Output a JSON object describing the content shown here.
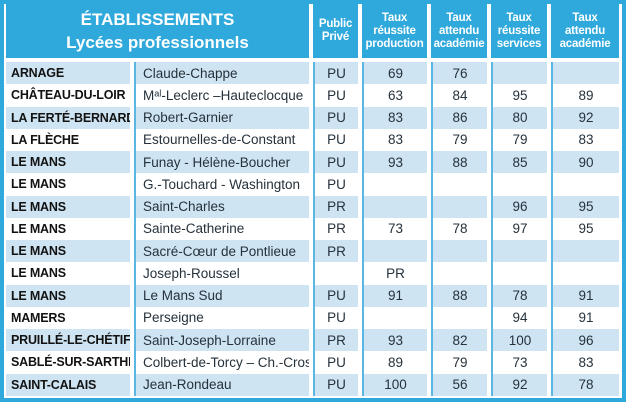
{
  "title": {
    "line1": "ÉTABLISSEMENTS",
    "line2": "Lycées professionnels"
  },
  "columns": [
    {
      "id": "public_prive",
      "lines": [
        "Public",
        "Privé"
      ]
    },
    {
      "id": "taux_reussite_production",
      "lines": [
        "Taux",
        "réussite",
        "production"
      ]
    },
    {
      "id": "taux_attendu_academie_1",
      "lines": [
        "Taux",
        "attendu",
        "académie"
      ]
    },
    {
      "id": "taux_reussite_services",
      "lines": [
        "Taux",
        "réussite",
        "services"
      ]
    },
    {
      "id": "taux_attendu_academie_2",
      "lines": [
        "Taux",
        "attendu",
        "académie"
      ]
    }
  ],
  "rows": [
    {
      "town": "ARNAGE",
      "school": "Claude-Chappe",
      "public_prive": "PU",
      "taux_reussite_production": "69",
      "taux_attendu_academie_1": "76",
      "taux_reussite_services": "",
      "taux_attendu_academie_2": ""
    },
    {
      "town": "CHÂTEAU-DU-LOIR",
      "school": "Mᵃˡ-Leclerc –Hauteclocque",
      "public_prive": "PU",
      "taux_reussite_production": "63",
      "taux_attendu_academie_1": "84",
      "taux_reussite_services": "95",
      "taux_attendu_academie_2": "89"
    },
    {
      "town": "LA FERTÉ-BERNARD",
      "school": "Robert-Garnier",
      "public_prive": "PU",
      "taux_reussite_production": "83",
      "taux_attendu_academie_1": "86",
      "taux_reussite_services": "80",
      "taux_attendu_academie_2": "92"
    },
    {
      "town": "LA FLÈCHE",
      "school": "Estournelles-de-Constant",
      "public_prive": "PU",
      "taux_reussite_production": "83",
      "taux_attendu_academie_1": "79",
      "taux_reussite_services": "79",
      "taux_attendu_academie_2": "83"
    },
    {
      "town": "LE MANS",
      "school": "Funay - Hélène-Boucher",
      "public_prive": "PU",
      "taux_reussite_production": "93",
      "taux_attendu_academie_1": "88",
      "taux_reussite_services": "85",
      "taux_attendu_academie_2": "90"
    },
    {
      "town": "LE MANS",
      "school": "G.-Touchard - Washington",
      "public_prive": "PU",
      "taux_reussite_production": "",
      "taux_attendu_academie_1": "",
      "taux_reussite_services": "",
      "taux_attendu_academie_2": ""
    },
    {
      "town": "LE MANS",
      "school": "Saint-Charles",
      "public_prive": "PR",
      "taux_reussite_production": "",
      "taux_attendu_academie_1": "",
      "taux_reussite_services": "96",
      "taux_attendu_academie_2": "95"
    },
    {
      "town": "LE MANS",
      "school": "Sainte-Catherine",
      "public_prive": "PR",
      "taux_reussite_production": "73",
      "taux_attendu_academie_1": "78",
      "taux_reussite_services": "97",
      "taux_attendu_academie_2": "95"
    },
    {
      "town": "LE MANS",
      "school": "Sacré-Cœur de Pontlieue",
      "public_prive": "PR",
      "taux_reussite_production": "",
      "taux_attendu_academie_1": "",
      "taux_reussite_services": "",
      "taux_attendu_academie_2": ""
    },
    {
      "town": "LE MANS",
      "school": "Joseph-Roussel",
      "public_prive": "",
      "taux_reussite_production": "PR",
      "taux_attendu_academie_1": "",
      "taux_reussite_services": "",
      "taux_attendu_academie_2": ""
    },
    {
      "town": "LE MANS",
      "school": "Le Mans Sud",
      "public_prive": "PU",
      "taux_reussite_production": "91",
      "taux_attendu_academie_1": "88",
      "taux_reussite_services": "78",
      "taux_attendu_academie_2": "91"
    },
    {
      "town": "MAMERS",
      "school": "Perseigne",
      "public_prive": "PU",
      "taux_reussite_production": "",
      "taux_attendu_academie_1": "",
      "taux_reussite_services": "94",
      "taux_attendu_academie_2": "91"
    },
    {
      "town": "PRUILLÉ-LE-CHÉTIF",
      "school": "Saint-Joseph-Lorraine",
      "public_prive": "PR",
      "taux_reussite_production": "93",
      "taux_attendu_academie_1": "82",
      "taux_reussite_services": "100",
      "taux_attendu_academie_2": "96"
    },
    {
      "town": "SABLÉ-SUR-SARTHE",
      "school": "Colbert-de-Torcy – Ch.-Cros",
      "public_prive": "PU",
      "taux_reussite_production": "89",
      "taux_attendu_academie_1": "79",
      "taux_reussite_services": "73",
      "taux_attendu_academie_2": "83"
    },
    {
      "town": "SAINT-CALAIS",
      "school": "Jean-Rondeau",
      "public_prive": "PU",
      "taux_reussite_production": "100",
      "taux_attendu_academie_1": "56",
      "taux_reussite_services": "92",
      "taux_attendu_academie_2": "78"
    }
  ],
  "colors": {
    "header_bg": "#2fa8dc",
    "border": "#2fa8dc",
    "separator_line": "#5cb6e2",
    "row_alt_bg": "#cfe4f2",
    "row_bg": "#ffffff",
    "header_text": "#ffffff",
    "town_text": "#121212",
    "body_text": "#25313b"
  }
}
